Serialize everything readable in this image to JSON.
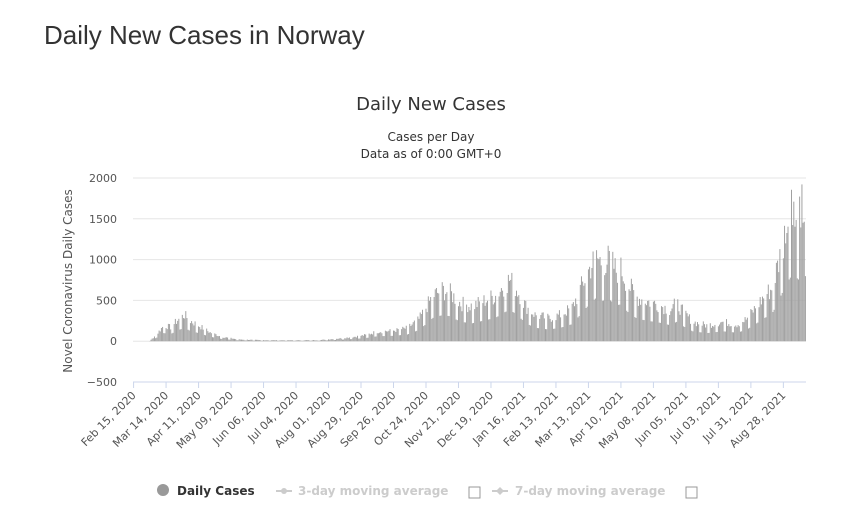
{
  "page": {
    "title": "Daily New Cases in Norway"
  },
  "chart_data": {
    "type": "bar",
    "title": "Daily New Cases",
    "subtitle_line1": "Cases per Day",
    "subtitle_line2": "Data as of 0:00 GMT+0",
    "ylabel": "Novel Coronavirus Daily Cases",
    "xlabel": "",
    "ylim": [
      -500,
      2000
    ],
    "yticks": [
      2000,
      1500,
      1000,
      500,
      0,
      -500
    ],
    "start_date": "Feb 15, 2020",
    "day_count": 580,
    "x_tick_labels": [
      "Feb 15, 2020",
      "Mar 14, 2020",
      "Apr 11, 2020",
      "May 09, 2020",
      "Jun 06, 2020",
      "Jul 04, 2020",
      "Aug 01, 2020",
      "Aug 29, 2020",
      "Sep 26, 2020",
      "Oct 24, 2020",
      "Nov 21, 2020",
      "Dec 19, 2020",
      "Jan 16, 2021",
      "Feb 13, 2021",
      "Mar 13, 2021",
      "Apr 10, 2021",
      "May 08, 2021",
      "Jun 05, 2021",
      "Jul 03, 2021",
      "Jul 31, 2021",
      "Aug 28, 2021"
    ],
    "x_tick_day_offsets": [
      0,
      28,
      56,
      84,
      112,
      140,
      168,
      196,
      224,
      252,
      280,
      308,
      336,
      364,
      392,
      420,
      448,
      476,
      504,
      532,
      560
    ],
    "series_profile": [
      {
        "day": 0,
        "value": 0
      },
      {
        "day": 14,
        "value": 2
      },
      {
        "day": 20,
        "value": 80
      },
      {
        "day": 26,
        "value": 180
      },
      {
        "day": 32,
        "value": 160
      },
      {
        "day": 38,
        "value": 240
      },
      {
        "day": 44,
        "value": 300
      },
      {
        "day": 48,
        "value": 240
      },
      {
        "day": 56,
        "value": 180
      },
      {
        "day": 66,
        "value": 100
      },
      {
        "day": 76,
        "value": 50
      },
      {
        "day": 90,
        "value": 20
      },
      {
        "day": 110,
        "value": 12
      },
      {
        "day": 140,
        "value": 10
      },
      {
        "day": 160,
        "value": 12
      },
      {
        "day": 176,
        "value": 30
      },
      {
        "day": 190,
        "value": 50
      },
      {
        "day": 200,
        "value": 70
      },
      {
        "day": 210,
        "value": 110
      },
      {
        "day": 224,
        "value": 120
      },
      {
        "day": 236,
        "value": 150
      },
      {
        "day": 246,
        "value": 250
      },
      {
        "day": 252,
        "value": 380
      },
      {
        "day": 258,
        "value": 520
      },
      {
        "day": 266,
        "value": 580
      },
      {
        "day": 272,
        "value": 560
      },
      {
        "day": 282,
        "value": 430
      },
      {
        "day": 292,
        "value": 400
      },
      {
        "day": 302,
        "value": 460
      },
      {
        "day": 312,
        "value": 520
      },
      {
        "day": 318,
        "value": 620
      },
      {
        "day": 324,
        "value": 700
      },
      {
        "day": 330,
        "value": 600
      },
      {
        "day": 338,
        "value": 400
      },
      {
        "day": 346,
        "value": 300
      },
      {
        "day": 358,
        "value": 260
      },
      {
        "day": 368,
        "value": 300
      },
      {
        "day": 378,
        "value": 380
      },
      {
        "day": 386,
        "value": 620
      },
      {
        "day": 392,
        "value": 800
      },
      {
        "day": 398,
        "value": 950
      },
      {
        "day": 404,
        "value": 900
      },
      {
        "day": 410,
        "value": 930
      },
      {
        "day": 416,
        "value": 800
      },
      {
        "day": 420,
        "value": 820
      },
      {
        "day": 426,
        "value": 650
      },
      {
        "day": 434,
        "value": 500
      },
      {
        "day": 444,
        "value": 450
      },
      {
        "day": 452,
        "value": 420
      },
      {
        "day": 462,
        "value": 360
      },
      {
        "day": 468,
        "value": 430
      },
      {
        "day": 474,
        "value": 330
      },
      {
        "day": 482,
        "value": 220
      },
      {
        "day": 494,
        "value": 180
      },
      {
        "day": 508,
        "value": 220
      },
      {
        "day": 520,
        "value": 190
      },
      {
        "day": 528,
        "value": 250
      },
      {
        "day": 536,
        "value": 380
      },
      {
        "day": 544,
        "value": 520
      },
      {
        "day": 550,
        "value": 600
      },
      {
        "day": 556,
        "value": 900
      },
      {
        "day": 562,
        "value": 1250
      },
      {
        "day": 568,
        "value": 1500
      },
      {
        "day": 574,
        "value": 1350
      },
      {
        "day": 579,
        "value": 1450
      }
    ],
    "peak_labels_note": "",
    "legend": [
      {
        "label": "Daily Cases",
        "active": true
      },
      {
        "label": "3-day moving average",
        "active": false
      },
      {
        "label": "7-day moving average",
        "active": false
      }
    ]
  },
  "colors": {
    "bar": "#a0a0a0",
    "grid": "#e6e6e6",
    "axis": "#ccd6eb",
    "legend_active": "#999999",
    "legend_inactive": "#cccccc"
  }
}
